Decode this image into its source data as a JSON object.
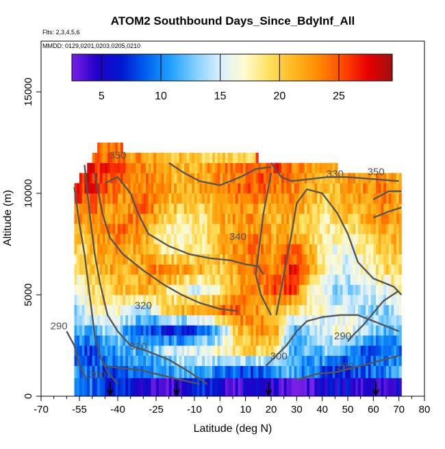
{
  "chart_data": {
    "type": "heatmap",
    "title": "ATOM2 Southbound Days_Since_BdyInf_All",
    "subtitle_flights": "Flts: 2,3,4,5,6",
    "subtitle_dates": "MMDD: 0129,0201,0203,0205,0210",
    "xlabel": "Latitude (deg N)",
    "ylabel": "Altitude (m)",
    "xlim": [
      -70,
      80
    ],
    "ylim": [
      0,
      17500
    ],
    "x_ticks": [
      -70,
      -55,
      -40,
      -25,
      -10,
      0,
      10,
      20,
      30,
      40,
      50,
      60,
      70,
      80
    ],
    "x_minor_ticks": [
      -65,
      -60,
      -50,
      -45,
      -35,
      -30,
      -20,
      -15,
      -5,
      5,
      15,
      25,
      35,
      45,
      55,
      65,
      75
    ],
    "y_ticks": [
      0,
      5000,
      10000,
      15000
    ],
    "colorbar": {
      "min": 2.5,
      "max": 29.5,
      "ticks": [
        5,
        10,
        15,
        20,
        25
      ],
      "colors": [
        "#7a1fe8",
        "#2200c8",
        "#0018d0",
        "#0060f0",
        "#20a0ff",
        "#80cfff",
        "#d8efff",
        "#fffbd0",
        "#ffe060",
        "#ffb820",
        "#ff8a00",
        "#ff4a00",
        "#e80000",
        "#a01010"
      ]
    },
    "altitude_band_tops": [
      900,
      1500,
      2000,
      2500,
      3000,
      3500,
      4000,
      4500,
      5000,
      5500,
      6000,
      6500,
      7000,
      7500,
      8000,
      8500,
      9000,
      9500,
      10000,
      10500,
      11000,
      11500,
      12000,
      12500
    ],
    "data_lat_range": [
      -57,
      71
    ],
    "sections": [
      {
        "lat": -57,
        "ceiling": 10500
      },
      {
        "lat": -53,
        "ceiling": 11000
      },
      {
        "lat": -48,
        "ceiling": 12300
      },
      {
        "lat": 10,
        "ceiling": 12000
      },
      {
        "lat": 20,
        "ceiling": 11500
      },
      {
        "lat": 71,
        "ceiling": 11000
      }
    ],
    "values_by_altitude": [
      {
        "alt": 500,
        "values": [
          12,
          9,
          6,
          7,
          4,
          3,
          5,
          8,
          5,
          4,
          6,
          5,
          3,
          4,
          5,
          6,
          4,
          5,
          6
        ]
      },
      {
        "alt": 1250,
        "values": [
          10,
          9,
          8,
          9,
          10,
          11,
          13,
          12,
          10,
          9,
          8,
          11,
          12,
          10,
          8,
          7,
          9,
          10,
          12
        ]
      },
      {
        "alt": 2250,
        "values": [
          9,
          8,
          10,
          12,
          11,
          14,
          15,
          16,
          17,
          19,
          20,
          18,
          11,
          12,
          13,
          10,
          9,
          8,
          10
        ]
      },
      {
        "alt": 3250,
        "values": [
          11,
          12,
          14,
          11,
          9,
          7,
          6,
          9,
          12,
          21,
          22,
          23,
          12,
          14,
          16,
          17,
          14,
          12,
          13
        ]
      },
      {
        "alt": 4250,
        "values": [
          13,
          17,
          18,
          16,
          14,
          19,
          21,
          22,
          24,
          25,
          23,
          21,
          19,
          17,
          16,
          15,
          14,
          13,
          15
        ]
      },
      {
        "alt": 5250,
        "values": [
          16,
          19,
          20,
          21,
          22,
          19,
          17,
          15,
          18,
          22,
          23,
          25,
          26,
          18,
          14,
          13,
          15,
          16,
          17
        ]
      },
      {
        "alt": 6250,
        "values": [
          18,
          20,
          22,
          21,
          23,
          24,
          22,
          21,
          20,
          22,
          24,
          23,
          27,
          22,
          16,
          15,
          17,
          19,
          20
        ]
      },
      {
        "alt": 7250,
        "values": [
          19,
          21,
          23,
          22,
          21,
          18,
          17,
          19,
          21,
          23,
          24,
          22,
          25,
          21,
          17,
          16,
          18,
          20,
          21
        ]
      },
      {
        "alt": 8250,
        "values": [
          21,
          22,
          23,
          24,
          22,
          18,
          17,
          18,
          21,
          22,
          23,
          22,
          21,
          19,
          18,
          19,
          20,
          22,
          21
        ]
      },
      {
        "alt": 9250,
        "values": [
          23,
          24,
          22,
          23,
          24,
          21,
          20,
          19,
          22,
          23,
          22,
          21,
          23,
          20,
          19,
          21,
          22,
          23,
          22
        ]
      },
      {
        "alt": 10250,
        "values": [
          27,
          26,
          25,
          23,
          24,
          22,
          21,
          22,
          23,
          24,
          25,
          24,
          23,
          22,
          21,
          22,
          23,
          24,
          22
        ]
      },
      {
        "alt": 11250,
        "values": [
          null,
          27,
          26,
          24,
          23,
          22,
          21,
          22,
          23,
          24,
          25,
          26,
          24,
          22,
          21,
          22,
          23,
          22,
          null
        ]
      },
      {
        "alt": 12000,
        "values": [
          null,
          null,
          24,
          23,
          22,
          21,
          20,
          19,
          18,
          17,
          null,
          null,
          null,
          null,
          null,
          null,
          null,
          null,
          null
        ]
      }
    ],
    "contour_labels": [
      {
        "text": "350",
        "lat": -40,
        "alt": 11700
      },
      {
        "text": "350",
        "lat": 61,
        "alt": 10900
      },
      {
        "text": "330",
        "lat": 45,
        "alt": 10800
      },
      {
        "text": "340",
        "lat": 7,
        "alt": 7700
      },
      {
        "text": "320",
        "lat": -30,
        "alt": 4300
      },
      {
        "text": "310",
        "lat": -32,
        "alt": 2300
      },
      {
        "text": "300",
        "lat": -48,
        "alt": 900
      },
      {
        "text": "300",
        "lat": 23,
        "alt": 1800
      },
      {
        "text": "290",
        "lat": -63,
        "alt": 3300
      },
      {
        "text": "290",
        "lat": 48,
        "alt": 2800
      },
      {
        "text": "280",
        "lat": 49,
        "alt": 1300
      }
    ],
    "contours": [
      [
        [
          -57,
          10300
        ],
        [
          -55,
          8500
        ],
        [
          -53,
          7000
        ],
        [
          -51,
          5000
        ],
        [
          -49,
          3000
        ],
        [
          -47,
          2000
        ],
        [
          -44,
          1200
        ],
        [
          -40,
          600
        ]
      ],
      [
        [
          -53,
          11400
        ],
        [
          -51,
          9000
        ],
        [
          -49,
          7000
        ],
        [
          -47,
          5600
        ],
        [
          -44,
          4000
        ],
        [
          -40,
          3200
        ],
        [
          -35,
          2500
        ],
        [
          -28,
          2200
        ],
        [
          -20,
          1800
        ],
        [
          -12,
          1200
        ],
        [
          -5,
          600
        ]
      ],
      [
        [
          -49,
          11000
        ],
        [
          -46,
          9000
        ],
        [
          -43,
          7800
        ],
        [
          -38,
          7000
        ],
        [
          -30,
          6200
        ],
        [
          -22,
          5500
        ],
        [
          -15,
          5000
        ],
        [
          -8,
          4600
        ],
        [
          0,
          4300
        ],
        [
          7,
          4200
        ]
      ],
      [
        [
          -45,
          10500
        ],
        [
          -40,
          10800
        ],
        [
          -35,
          10000
        ],
        [
          -32,
          9000
        ],
        [
          -28,
          8000
        ],
        [
          -20,
          7400
        ],
        [
          -12,
          7000
        ],
        [
          -4,
          6800
        ],
        [
          4,
          6700
        ],
        [
          10,
          6500
        ],
        [
          15,
          6400
        ],
        [
          17,
          6000
        ]
      ],
      [
        [
          -20,
          11500
        ],
        [
          -14,
          11000
        ],
        [
          -8,
          10600
        ],
        [
          0,
          10400
        ],
        [
          8,
          10800
        ],
        [
          14,
          11200
        ],
        [
          20,
          11300
        ]
      ],
      [
        [
          20,
          11000
        ],
        [
          17,
          9000
        ],
        [
          15,
          7000
        ],
        [
          14,
          6000
        ],
        [
          16,
          5000
        ],
        [
          20,
          4000
        ]
      ],
      [
        [
          20,
          11500
        ],
        [
          24,
          10800
        ],
        [
          28,
          10600
        ],
        [
          35,
          10700
        ],
        [
          42,
          10800
        ],
        [
          50,
          10800
        ],
        [
          60,
          10700
        ],
        [
          70,
          10600
        ]
      ],
      [
        [
          22,
          4000
        ],
        [
          25,
          6000
        ],
        [
          28,
          8000
        ],
        [
          30,
          9500
        ],
        [
          34,
          10200
        ],
        [
          40,
          10000
        ],
        [
          46,
          9000
        ],
        [
          50,
          8000
        ],
        [
          54,
          6600
        ],
        [
          60,
          5800
        ],
        [
          68,
          5400
        ],
        [
          71,
          5000
        ]
      ],
      [
        [
          18,
          1500
        ],
        [
          22,
          2000
        ],
        [
          26,
          2500
        ],
        [
          30,
          3200
        ],
        [
          34,
          3700
        ],
        [
          40,
          3900
        ],
        [
          47,
          4000
        ],
        [
          54,
          4000
        ],
        [
          62,
          3600
        ],
        [
          70,
          3200
        ]
      ],
      [
        [
          -60,
          3200
        ],
        [
          -57,
          2500
        ],
        [
          -55,
          1500
        ],
        [
          -52,
          800
        ]
      ],
      [
        [
          50,
          2700
        ],
        [
          52,
          3000
        ],
        [
          56,
          3500
        ],
        [
          60,
          4100
        ],
        [
          64,
          4700
        ],
        [
          70,
          5200
        ]
      ],
      [
        [
          30,
          800
        ],
        [
          38,
          1100
        ],
        [
          46,
          1200
        ],
        [
          52,
          1400
        ],
        [
          58,
          1600
        ],
        [
          64,
          1800
        ],
        [
          70,
          2000
        ]
      ],
      [
        [
          -45,
          1500
        ],
        [
          -40,
          1400
        ],
        [
          -32,
          1300
        ],
        [
          -25,
          1100
        ],
        [
          -15,
          800
        ],
        [
          -8,
          600
        ]
      ],
      [
        [
          60,
          9700
        ],
        [
          66,
          10100
        ],
        [
          71,
          10100
        ]
      ],
      [
        [
          60,
          8800
        ],
        [
          66,
          9100
        ],
        [
          71,
          9300
        ]
      ]
    ],
    "flight_markers_lat": [
      -43,
      -17,
      19,
      61
    ]
  }
}
